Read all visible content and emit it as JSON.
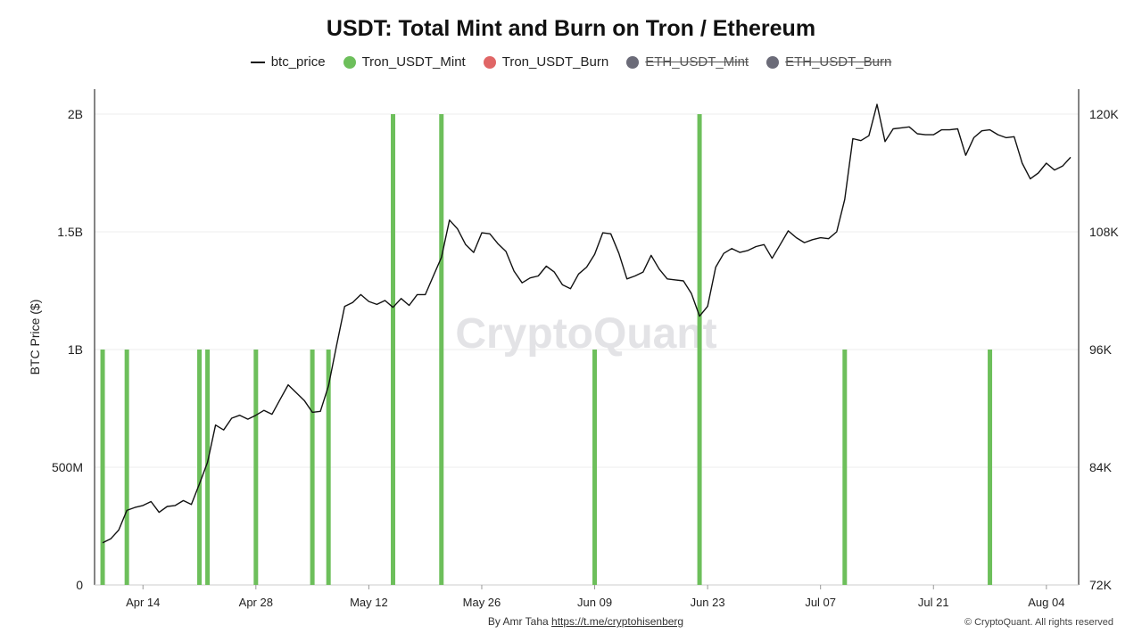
{
  "chart_data": {
    "type": "bar",
    "title": "USDT: Total Mint and Burn on Tron / Ethereum",
    "ylabel": "BTC Price ($)",
    "y_left": {
      "ticks": [
        0,
        500000000,
        1000000000,
        1500000000,
        2000000000
      ],
      "tick_labels": [
        "0",
        "500M",
        "1B",
        "1.5B",
        "2B"
      ],
      "range": [
        0,
        2100000000
      ]
    },
    "y_right": {
      "ticks": [
        72000,
        84000,
        96000,
        108000,
        120000
      ],
      "tick_labels": [
        "72K",
        "84K",
        "96K",
        "108K",
        "120K"
      ],
      "range": [
        72000,
        122000
      ]
    },
    "x": {
      "range": [
        "2025-04-08",
        "2025-08-08"
      ],
      "tick_dates": [
        "2025-04-14",
        "2025-04-28",
        "2025-05-12",
        "2025-05-26",
        "2025-06-09",
        "2025-06-23",
        "2025-07-07",
        "2025-07-21",
        "2025-08-04"
      ],
      "tick_labels": [
        "Apr 14",
        "Apr 28",
        "May 12",
        "May 26",
        "Jun 09",
        "Jun 23",
        "Jul 07",
        "Jul 21",
        "Aug 04"
      ]
    },
    "legend": [
      {
        "name": "btc_price",
        "kind": "line",
        "color": "#111111",
        "visible": true
      },
      {
        "name": "Tron_USDT_Mint",
        "kind": "dot",
        "color": "#6dbf5b",
        "visible": true
      },
      {
        "name": "Tron_USDT_Burn",
        "kind": "dot",
        "color": "#e06666",
        "visible": true
      },
      {
        "name": "ETH_USDT_Mint",
        "kind": "dot",
        "color": "#6b6b78",
        "visible": false
      },
      {
        "name": "ETH_USDT_Burn",
        "kind": "dot",
        "color": "#6b6b78",
        "visible": false
      }
    ],
    "series": [
      {
        "name": "Tron_USDT_Mint",
        "axis": "left",
        "type": "bar",
        "color": "#6dbf5b",
        "points": [
          [
            "2025-04-09",
            1000000000
          ],
          [
            "2025-04-12",
            1000000000
          ],
          [
            "2025-04-21",
            1000000000
          ],
          [
            "2025-04-22",
            1000000000
          ],
          [
            "2025-04-28",
            1000000000
          ],
          [
            "2025-05-05",
            1000000000
          ],
          [
            "2025-05-07",
            1000000000
          ],
          [
            "2025-05-15",
            2000000000
          ],
          [
            "2025-05-21",
            2000000000
          ],
          [
            "2025-06-09",
            1000000000
          ],
          [
            "2025-06-22",
            2000000000
          ],
          [
            "2025-07-10",
            1000000000
          ],
          [
            "2025-07-28",
            1000000000
          ]
        ]
      },
      {
        "name": "btc_price",
        "axis": "right",
        "type": "line",
        "color": "#111111",
        "points": [
          [
            "2025-04-09",
            76300
          ],
          [
            "2025-04-10",
            76700
          ],
          [
            "2025-04-11",
            77600
          ],
          [
            "2025-04-12",
            79600
          ],
          [
            "2025-04-13",
            79900
          ],
          [
            "2025-04-14",
            80100
          ],
          [
            "2025-04-15",
            80500
          ],
          [
            "2025-04-16",
            79400
          ],
          [
            "2025-04-17",
            80000
          ],
          [
            "2025-04-18",
            80100
          ],
          [
            "2025-04-19",
            80600
          ],
          [
            "2025-04-20",
            80200
          ],
          [
            "2025-04-21",
            82300
          ],
          [
            "2025-04-22",
            84500
          ],
          [
            "2025-04-23",
            88300
          ],
          [
            "2025-04-24",
            87800
          ],
          [
            "2025-04-25",
            89000
          ],
          [
            "2025-04-26",
            89300
          ],
          [
            "2025-04-27",
            88900
          ],
          [
            "2025-04-28",
            89300
          ],
          [
            "2025-04-29",
            89800
          ],
          [
            "2025-04-30",
            89400
          ],
          [
            "2025-05-01",
            90900
          ],
          [
            "2025-05-02",
            92400
          ],
          [
            "2025-05-03",
            91600
          ],
          [
            "2025-05-04",
            90800
          ],
          [
            "2025-05-05",
            89600
          ],
          [
            "2025-05-06",
            89700
          ],
          [
            "2025-05-07",
            92300
          ],
          [
            "2025-05-08",
            96400
          ],
          [
            "2025-05-09",
            100400
          ],
          [
            "2025-05-10",
            100800
          ],
          [
            "2025-05-11",
            101600
          ],
          [
            "2025-05-12",
            100900
          ],
          [
            "2025-05-13",
            100600
          ],
          [
            "2025-05-14",
            101000
          ],
          [
            "2025-05-15",
            100300
          ],
          [
            "2025-05-16",
            101200
          ],
          [
            "2025-05-17",
            100500
          ],
          [
            "2025-05-18",
            101600
          ],
          [
            "2025-05-19",
            101600
          ],
          [
            "2025-05-20",
            103500
          ],
          [
            "2025-05-21",
            105400
          ],
          [
            "2025-05-22",
            109200
          ],
          [
            "2025-05-23",
            108300
          ],
          [
            "2025-05-24",
            106700
          ],
          [
            "2025-05-25",
            105900
          ],
          [
            "2025-05-26",
            107900
          ],
          [
            "2025-05-27",
            107800
          ],
          [
            "2025-05-28",
            106800
          ],
          [
            "2025-05-29",
            106000
          ],
          [
            "2025-05-30",
            104000
          ],
          [
            "2025-05-31",
            102800
          ],
          [
            "2025-06-01",
            103300
          ],
          [
            "2025-06-02",
            103500
          ],
          [
            "2025-06-03",
            104500
          ],
          [
            "2025-06-04",
            103900
          ],
          [
            "2025-06-05",
            102600
          ],
          [
            "2025-06-06",
            102200
          ],
          [
            "2025-06-07",
            103700
          ],
          [
            "2025-06-08",
            104400
          ],
          [
            "2025-06-09",
            105700
          ],
          [
            "2025-06-10",
            107900
          ],
          [
            "2025-06-11",
            107800
          ],
          [
            "2025-06-12",
            105800
          ],
          [
            "2025-06-13",
            103200
          ],
          [
            "2025-06-14",
            103500
          ],
          [
            "2025-06-15",
            103900
          ],
          [
            "2025-06-16",
            105600
          ],
          [
            "2025-06-17",
            104200
          ],
          [
            "2025-06-18",
            103200
          ],
          [
            "2025-06-19",
            103100
          ],
          [
            "2025-06-20",
            103000
          ],
          [
            "2025-06-21",
            101700
          ],
          [
            "2025-06-22",
            99400
          ],
          [
            "2025-06-23",
            100400
          ],
          [
            "2025-06-24",
            104400
          ],
          [
            "2025-06-25",
            105800
          ],
          [
            "2025-06-26",
            106300
          ],
          [
            "2025-06-27",
            105900
          ],
          [
            "2025-06-28",
            106100
          ],
          [
            "2025-06-29",
            106500
          ],
          [
            "2025-06-30",
            106700
          ],
          [
            "2025-07-01",
            105300
          ],
          [
            "2025-07-02",
            106700
          ],
          [
            "2025-07-03",
            108100
          ],
          [
            "2025-07-04",
            107400
          ],
          [
            "2025-07-05",
            106900
          ],
          [
            "2025-07-06",
            107200
          ],
          [
            "2025-07-07",
            107400
          ],
          [
            "2025-07-08",
            107300
          ],
          [
            "2025-07-09",
            108000
          ],
          [
            "2025-07-10",
            111300
          ],
          [
            "2025-07-11",
            117500
          ],
          [
            "2025-07-12",
            117300
          ],
          [
            "2025-07-13",
            117800
          ],
          [
            "2025-07-14",
            121000
          ],
          [
            "2025-07-15",
            117200
          ],
          [
            "2025-07-16",
            118500
          ],
          [
            "2025-07-17",
            118600
          ],
          [
            "2025-07-18",
            118700
          ],
          [
            "2025-07-19",
            118000
          ],
          [
            "2025-07-20",
            117900
          ],
          [
            "2025-07-21",
            117900
          ],
          [
            "2025-07-22",
            118400
          ],
          [
            "2025-07-23",
            118400
          ],
          [
            "2025-07-24",
            118500
          ],
          [
            "2025-07-25",
            115800
          ],
          [
            "2025-07-26",
            117600
          ],
          [
            "2025-07-27",
            118300
          ],
          [
            "2025-07-28",
            118400
          ],
          [
            "2025-07-29",
            117900
          ],
          [
            "2025-07-30",
            117600
          ],
          [
            "2025-07-31",
            117700
          ],
          [
            "2025-08-01",
            115000
          ],
          [
            "2025-08-02",
            113400
          ],
          [
            "2025-08-03",
            114000
          ],
          [
            "2025-08-04",
            115000
          ],
          [
            "2025-08-05",
            114300
          ],
          [
            "2025-08-06",
            114700
          ],
          [
            "2025-08-07",
            115600
          ]
        ]
      }
    ],
    "grid": true,
    "legend_position": "top-center",
    "watermark": "CryptoQuant"
  },
  "footer": {
    "author_prefix": "By Amr Taha",
    "author_link": "https://t.me/cryptohisenberg",
    "copyright": "© CryptoQuant. All rights reserved"
  }
}
